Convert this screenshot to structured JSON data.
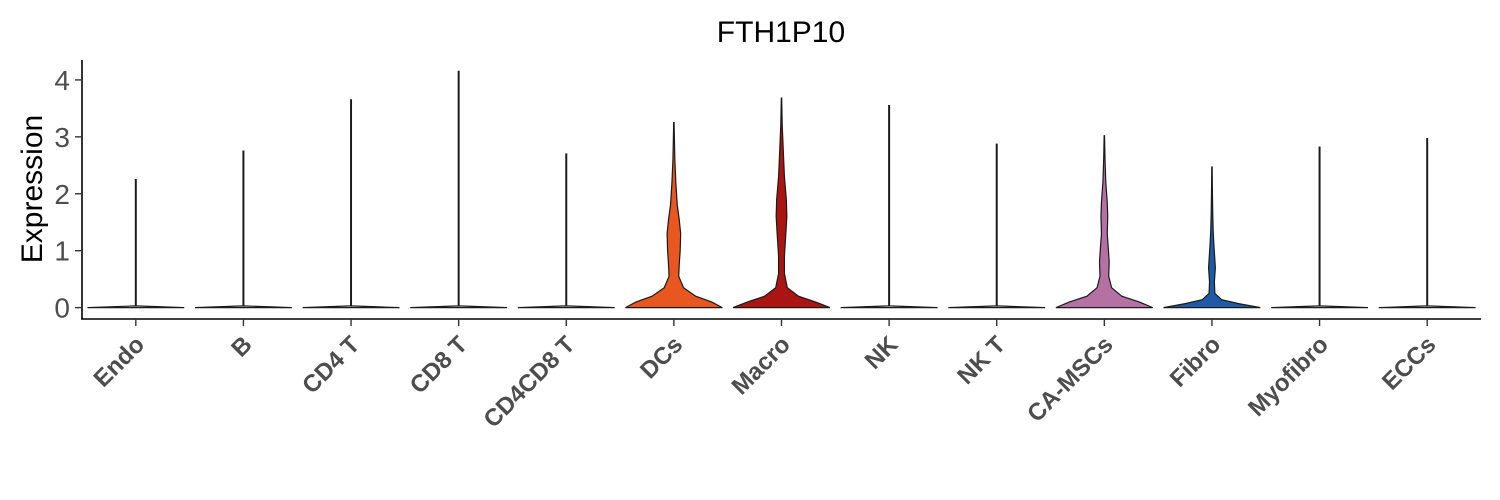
{
  "chart_data": {
    "type": "violin",
    "title": "FTH1P10",
    "xlabel": "",
    "ylabel": "Expression",
    "ylim": [
      -0.2,
      4.35
    ],
    "yticks": [
      0,
      1,
      2,
      3,
      4
    ],
    "grid": false,
    "legend": "none",
    "categories": [
      "Endo",
      "B",
      "CD4 T",
      "CD8 T",
      "CD4CD8 T",
      "DCs",
      "Macro",
      "NK",
      "NK T",
      "CA-MSCs",
      "Fibro",
      "Myofibro",
      "ECCs"
    ],
    "series": [
      {
        "category": "Endo",
        "max": 2.25,
        "color": "#ffffff",
        "density": [
          [
            0,
            1
          ],
          [
            0.03,
            0.008
          ],
          [
            2.25,
            0.008
          ]
        ]
      },
      {
        "category": "B",
        "max": 2.75,
        "color": "#ffffff",
        "density": [
          [
            0,
            1
          ],
          [
            0.03,
            0.008
          ],
          [
            2.75,
            0.008
          ]
        ]
      },
      {
        "category": "CD4 T",
        "max": 3.65,
        "color": "#ffffff",
        "density": [
          [
            0,
            1
          ],
          [
            0.03,
            0.008
          ],
          [
            3.65,
            0.008
          ]
        ]
      },
      {
        "category": "CD8 T",
        "max": 4.15,
        "color": "#ffffff",
        "density": [
          [
            0,
            1
          ],
          [
            0.03,
            0.008
          ],
          [
            4.15,
            0.008
          ]
        ]
      },
      {
        "category": "CD4CD8 T",
        "max": 2.7,
        "color": "#ffffff",
        "density": [
          [
            0,
            1
          ],
          [
            0.03,
            0.008
          ],
          [
            2.7,
            0.008
          ]
        ]
      },
      {
        "category": "DCs",
        "max": 3.25,
        "color": "#e8571f",
        "density": [
          [
            0,
            1
          ],
          [
            0.1,
            0.78
          ],
          [
            0.2,
            0.45
          ],
          [
            0.35,
            0.2
          ],
          [
            0.55,
            0.1
          ],
          [
            0.75,
            0.11
          ],
          [
            1.0,
            0.13
          ],
          [
            1.3,
            0.14
          ],
          [
            1.55,
            0.11
          ],
          [
            1.8,
            0.07
          ],
          [
            2.2,
            0.04
          ],
          [
            2.6,
            0.02
          ],
          [
            3.0,
            0.01
          ],
          [
            3.25,
            0.004
          ]
        ]
      },
      {
        "category": "Macro",
        "max": 3.68,
        "color": "#aa1511",
        "density": [
          [
            0,
            1
          ],
          [
            0.1,
            0.7
          ],
          [
            0.2,
            0.35
          ],
          [
            0.35,
            0.12
          ],
          [
            0.6,
            0.06
          ],
          [
            0.9,
            0.06
          ],
          [
            1.3,
            0.09
          ],
          [
            1.6,
            0.11
          ],
          [
            1.9,
            0.1
          ],
          [
            2.3,
            0.06
          ],
          [
            2.8,
            0.035
          ],
          [
            3.2,
            0.015
          ],
          [
            3.68,
            0.004
          ]
        ]
      },
      {
        "category": "NK",
        "max": 3.55,
        "color": "#ffffff",
        "density": [
          [
            0,
            1
          ],
          [
            0.03,
            0.008
          ],
          [
            3.55,
            0.008
          ]
        ]
      },
      {
        "category": "NK T",
        "max": 2.87,
        "color": "#ffffff",
        "density": [
          [
            0,
            1
          ],
          [
            0.03,
            0.008
          ],
          [
            2.87,
            0.008
          ]
        ]
      },
      {
        "category": "CA-MSCs",
        "max": 3.02,
        "color": "#b570a4",
        "density": [
          [
            0,
            1
          ],
          [
            0.1,
            0.72
          ],
          [
            0.2,
            0.36
          ],
          [
            0.35,
            0.15
          ],
          [
            0.55,
            0.09
          ],
          [
            0.8,
            0.1
          ],
          [
            1.0,
            0.085
          ],
          [
            1.3,
            0.06
          ],
          [
            1.6,
            0.07
          ],
          [
            1.85,
            0.06
          ],
          [
            2.2,
            0.03
          ],
          [
            2.6,
            0.014
          ],
          [
            3.02,
            0.004
          ]
        ]
      },
      {
        "category": "Fibro",
        "max": 2.47,
        "color": "#1d5ba8",
        "density": [
          [
            0,
            1
          ],
          [
            0.07,
            0.55
          ],
          [
            0.14,
            0.2
          ],
          [
            0.25,
            0.06
          ],
          [
            0.45,
            0.05
          ],
          [
            0.7,
            0.07
          ],
          [
            0.9,
            0.055
          ],
          [
            1.1,
            0.04
          ],
          [
            1.35,
            0.025
          ],
          [
            1.7,
            0.015
          ],
          [
            2.1,
            0.008
          ],
          [
            2.47,
            0.004
          ]
        ]
      },
      {
        "category": "Myofibro",
        "max": 2.82,
        "color": "#ffffff",
        "density": [
          [
            0,
            1
          ],
          [
            0.03,
            0.008
          ],
          [
            2.82,
            0.008
          ]
        ]
      },
      {
        "category": "ECCs",
        "max": 2.97,
        "color": "#ffffff",
        "density": [
          [
            0,
            1
          ],
          [
            0.03,
            0.008
          ],
          [
            2.97,
            0.008
          ]
        ]
      }
    ]
  }
}
